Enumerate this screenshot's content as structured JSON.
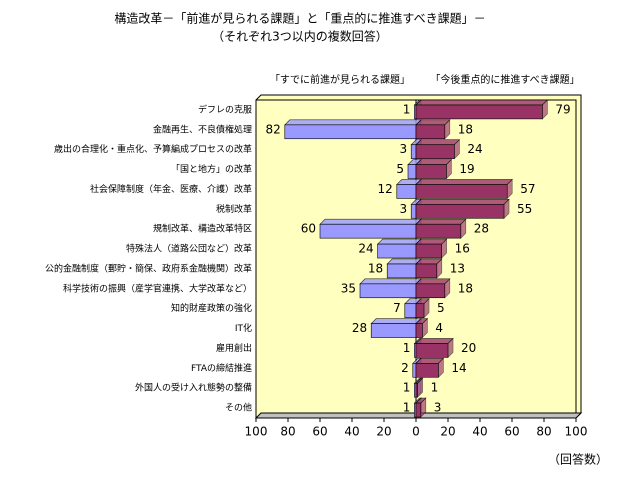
{
  "chart_data": {
    "type": "butterfly-bar",
    "title": "構造改革－「前進が見られる課題」と「重点的に推進すべき課題」－",
    "subtitle": "（それぞれ3つ以内の複数回答）",
    "unit": "（回答数）",
    "categories": [
      "デフレの克服",
      "金融再生、不良債権処理",
      "歳出の合理化・重点化、予算編成プロセスの改革",
      "「国と地方」の改革",
      "社会保障制度（年金、医療、介護）改革",
      "税制改革",
      "規制改革、構造改革特区",
      "特殊法人（道路公団など）改革",
      "公的金融制度（郵貯・簡保、政府系金融機関）改革",
      "科学技術の振興（産学官連携、大学改革など）",
      "知的財産政策の強化",
      "IT化",
      "雇用創出",
      "FTAの締結推進",
      "外国人の受け入れ態勢の整備",
      "その他"
    ],
    "series": [
      {
        "name": "「すでに前進が見られる課題」",
        "color": "#9999ff",
        "side": "left",
        "values": [
          1,
          82,
          3,
          5,
          12,
          3,
          60,
          24,
          18,
          35,
          7,
          28,
          1,
          2,
          1,
          1
        ]
      },
      {
        "name": "「今後重点的に推進すべき課題」",
        "color": "#993366",
        "side": "right",
        "values": [
          79,
          18,
          24,
          19,
          57,
          55,
          28,
          16,
          13,
          18,
          5,
          4,
          20,
          14,
          1,
          3
        ]
      }
    ],
    "xlim": [
      0,
      100
    ],
    "xticks": [
      0,
      20,
      40,
      60,
      80,
      100
    ]
  }
}
